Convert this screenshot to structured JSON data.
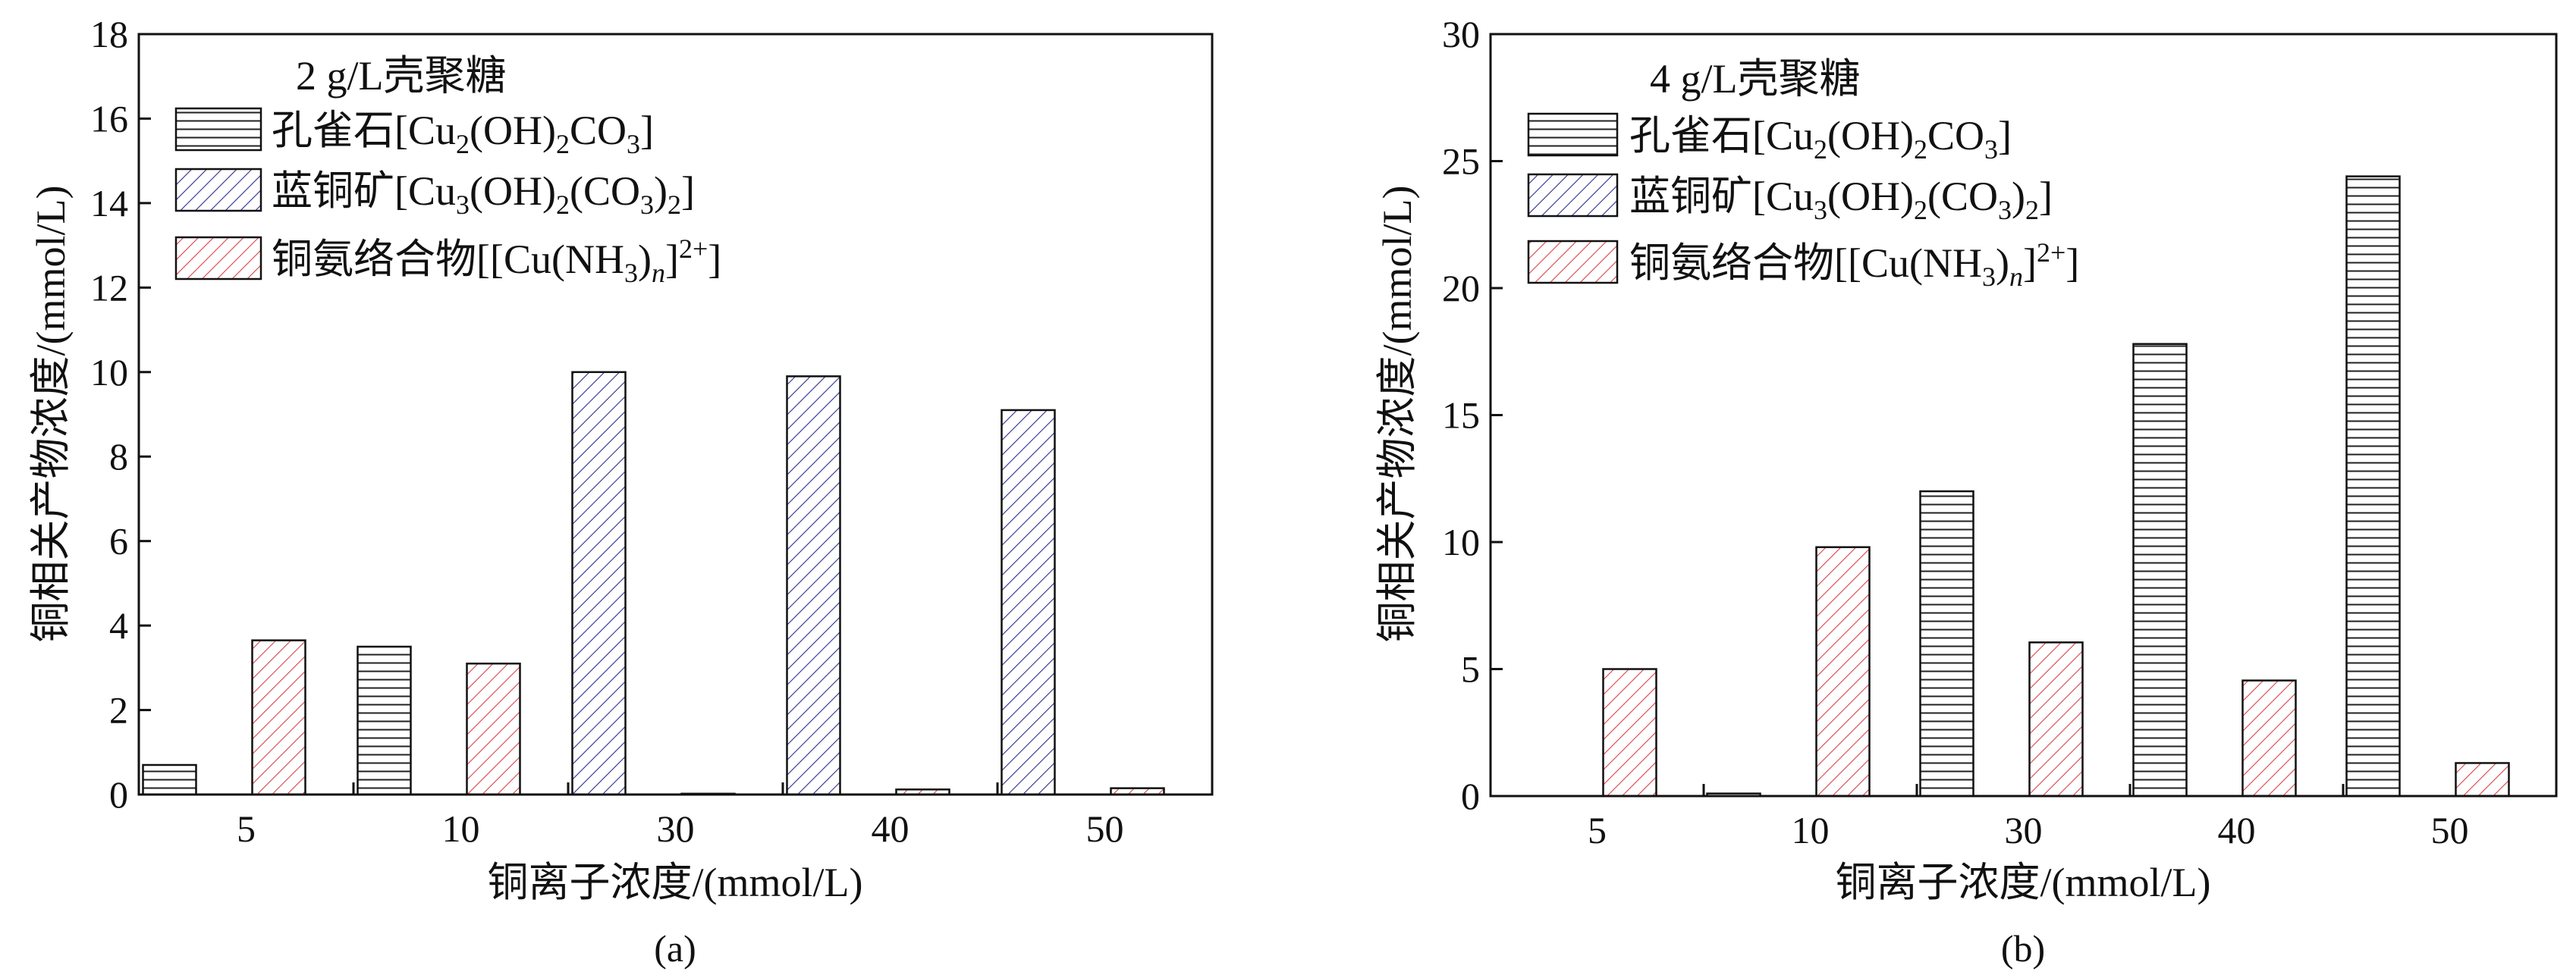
{
  "chart_data": [
    {
      "type": "bar",
      "panel_label": "(a)",
      "legend_title": "2 g/L壳聚糖",
      "xlabel": "铜离子浓度/(mmol/L)",
      "ylabel": "铜相关产物浓度/(mmol/L)",
      "categories": [
        "5",
        "10",
        "30",
        "40",
        "50"
      ],
      "ylim": [
        0,
        18
      ],
      "yticks": [
        "0",
        "2",
        "4",
        "6",
        "8",
        "10",
        "12",
        "14",
        "16",
        "18"
      ],
      "series": [
        {
          "name": "孔雀石[Cu2(OH)2CO3]",
          "values": [
            0.7,
            3.5,
            0,
            0,
            0
          ]
        },
        {
          "name": "蓝铜矿[Cu3(OH)2(CO3)2]",
          "values": [
            0,
            0,
            10.0,
            9.9,
            9.1
          ]
        },
        {
          "name": "铜氨络合物[[Cu(NH3)n]2+]",
          "values": [
            3.65,
            3.1,
            0.02,
            0.12,
            0.15
          ]
        }
      ],
      "grid": false,
      "legend_position": "top-left"
    },
    {
      "type": "bar",
      "panel_label": "(b)",
      "legend_title": "4 g/L壳聚糖",
      "xlabel": "铜离子浓度/(mmol/L)",
      "ylabel": "铜相关产物浓度/(mmol/L)",
      "categories": [
        "5",
        "10",
        "30",
        "40",
        "50"
      ],
      "ylim": [
        0,
        30
      ],
      "yticks": [
        "0",
        "5",
        "10",
        "15",
        "20",
        "25",
        "30"
      ],
      "series": [
        {
          "name": "孔雀石[Cu2(OH)2CO3]",
          "values": [
            0,
            0.1,
            12.0,
            17.8,
            24.4
          ]
        },
        {
          "name": "蓝铜矿[Cu3(OH)2(CO3)2]",
          "values": [
            0,
            0,
            0,
            0,
            0
          ]
        },
        {
          "name": "铜氨络合物[[Cu(NH3)n]2+]",
          "values": [
            5.0,
            9.8,
            6.05,
            4.55,
            1.3
          ]
        }
      ],
      "grid": false,
      "legend_position": "top-left"
    }
  ],
  "legend_labels": {
    "malachite": {
      "main": "孔雀石[Cu",
      "sub1": "2",
      "mid": "(OH)",
      "sub2": "2",
      "tail": "CO",
      "sub3": "3",
      "end": "]"
    },
    "azurite": {
      "main": "蓝铜矿[Cu",
      "sub1": "3",
      "mid": "(OH)",
      "sub2": "2",
      "mid2": "(CO",
      "sub3": "3",
      "mid3": ")",
      "sub4": "2",
      "end": "]"
    },
    "complex": {
      "main": "铜氨络合物[[Cu(NH",
      "sub1": "3",
      "mid": ")",
      "sub2": "n",
      "mid2": "]",
      "sup": "2+",
      "end": "]"
    }
  },
  "colors": {
    "malachite_stroke": "#222222",
    "azurite_stroke": "#2b2f8f",
    "complex_stroke": "#d9434a",
    "axis": "#111111"
  }
}
